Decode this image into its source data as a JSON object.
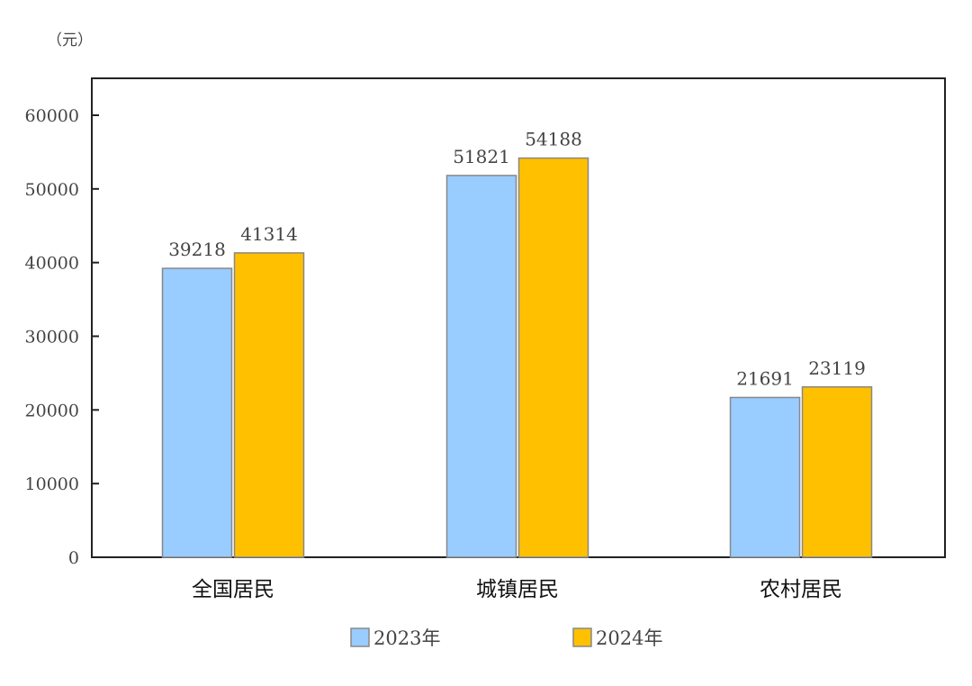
{
  "chart_data": {
    "type": "bar",
    "unit_label": "（元）",
    "categories": [
      "全国居民",
      "城镇居民",
      "农村居民"
    ],
    "series": [
      {
        "name": "2023年",
        "values": [
          39218,
          51821,
          21691
        ],
        "color": "#99CCFF"
      },
      {
        "name": "2024年",
        "values": [
          41314,
          54188,
          23119
        ],
        "color": "#FFC000"
      }
    ],
    "ylim": [
      0,
      65000
    ],
    "yticks": [
      0,
      10000,
      20000,
      30000,
      40000,
      50000,
      60000
    ],
    "grid": false,
    "legend": "bottom",
    "data_labels": true
  }
}
